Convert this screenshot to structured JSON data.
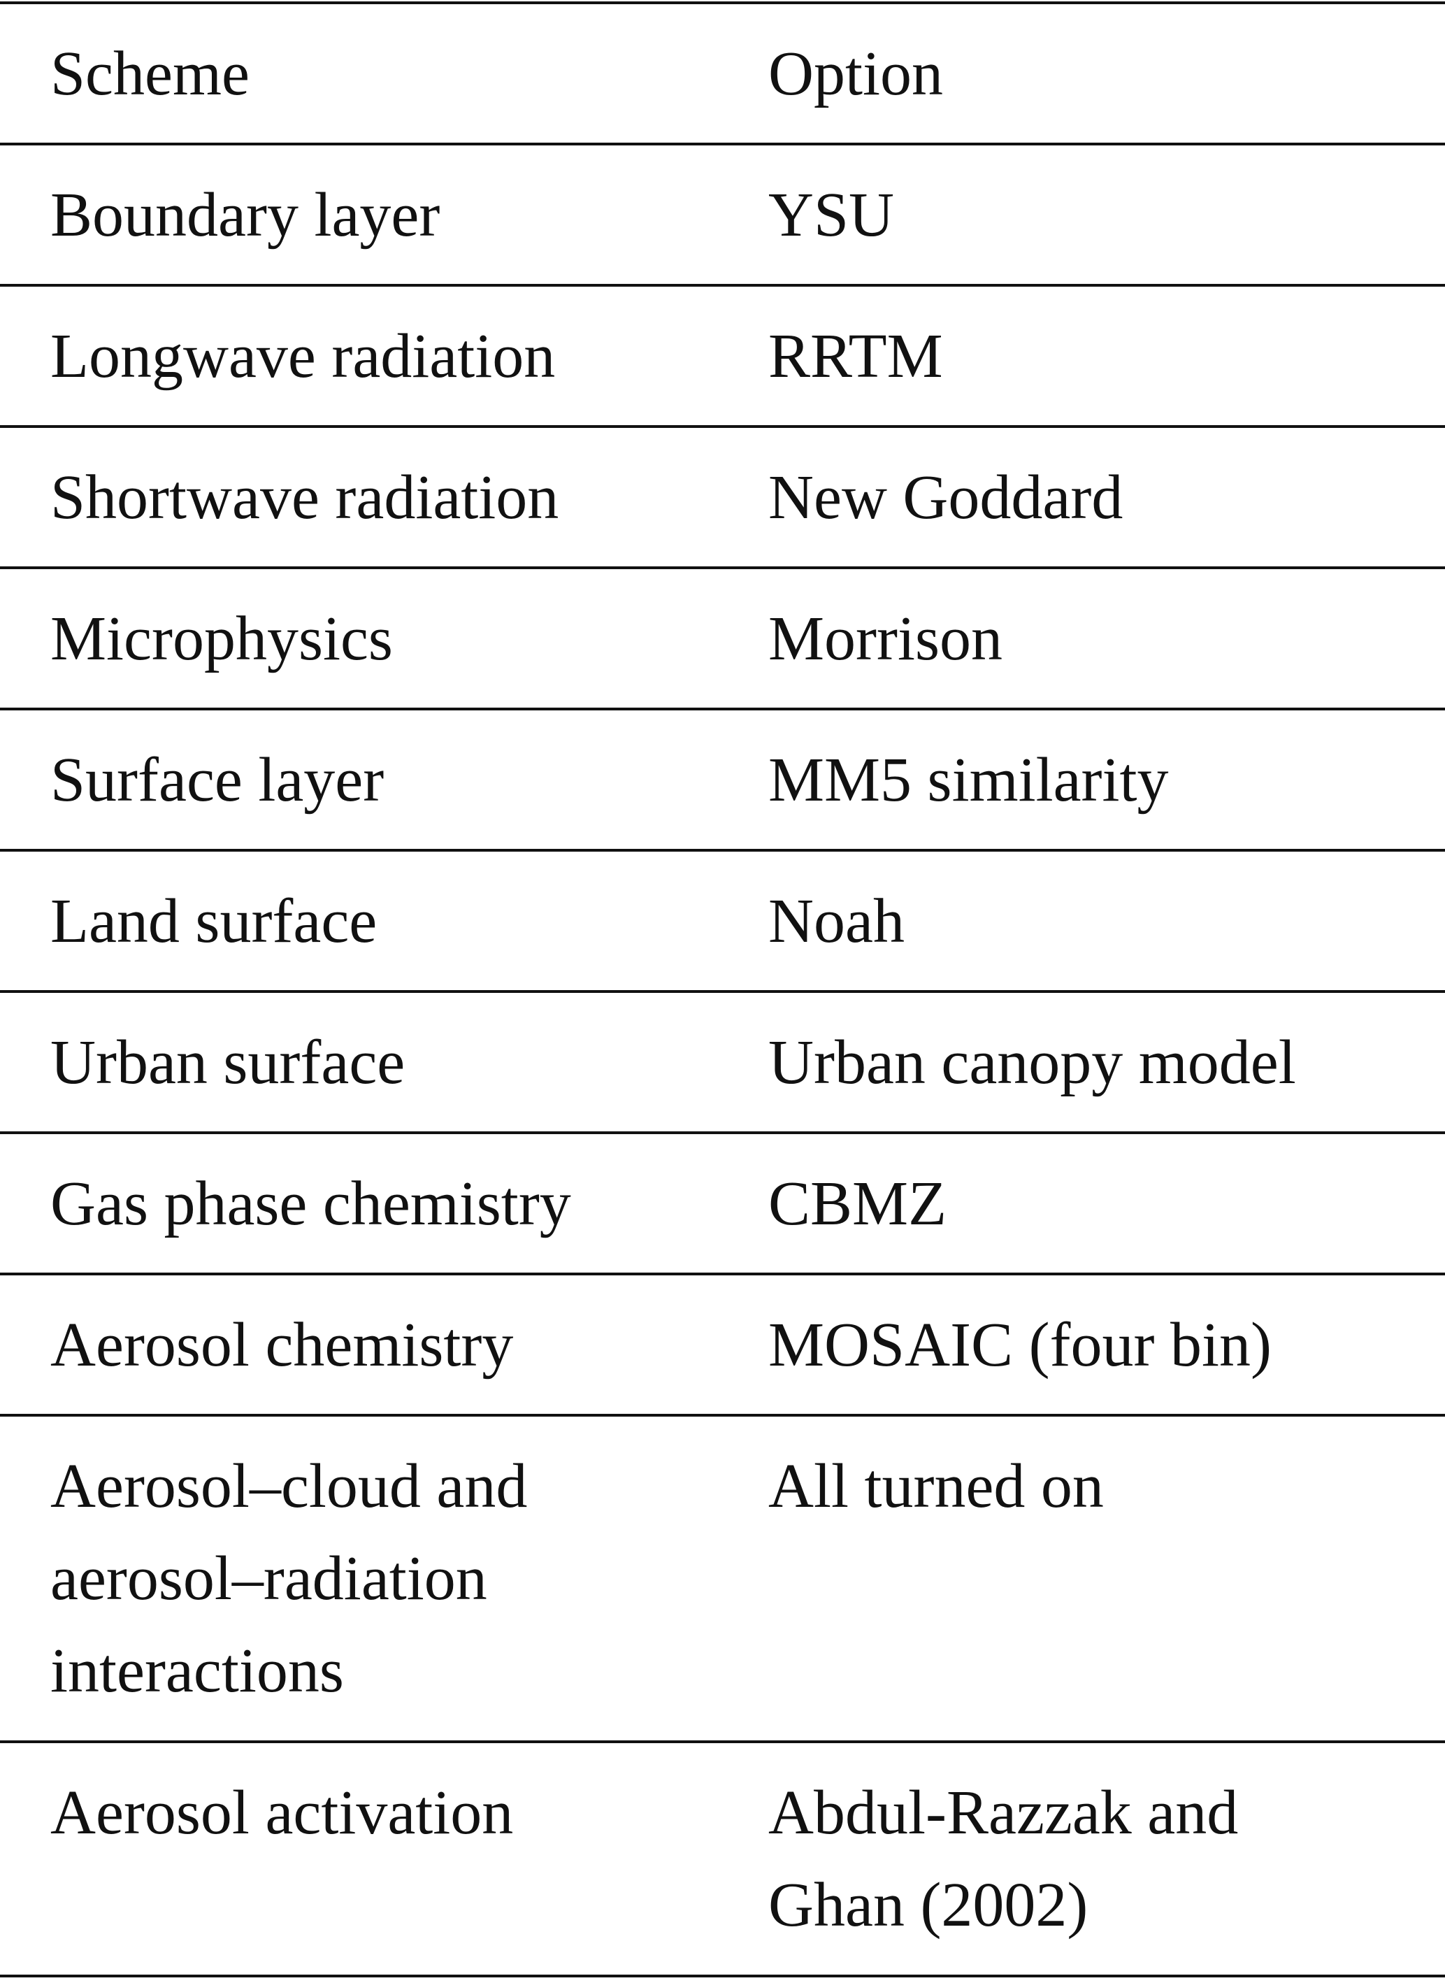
{
  "table": {
    "header": [
      "Scheme",
      "Option"
    ],
    "rows": [
      [
        "Boundary layer",
        "YSU"
      ],
      [
        "Longwave radiation",
        "RRTM"
      ],
      [
        "Shortwave radiation",
        "New Goddard"
      ],
      [
        "Microphysics",
        "Morrison"
      ],
      [
        "Surface layer",
        "MM5 similarity"
      ],
      [
        "Land surface",
        "Noah"
      ],
      [
        "Urban surface",
        "Urban canopy model"
      ],
      [
        "Gas phase chemistry",
        "CBMZ"
      ],
      [
        "Aerosol chemistry",
        "MOSAIC (four bin)"
      ],
      [
        [
          "Aerosol–cloud and",
          "aerosol–radiation",
          "interactions"
        ],
        "All turned on"
      ],
      [
        "Aerosol activation",
        [
          "Abdul-Razzak and",
          "Ghan (2002)"
        ]
      ]
    ]
  }
}
